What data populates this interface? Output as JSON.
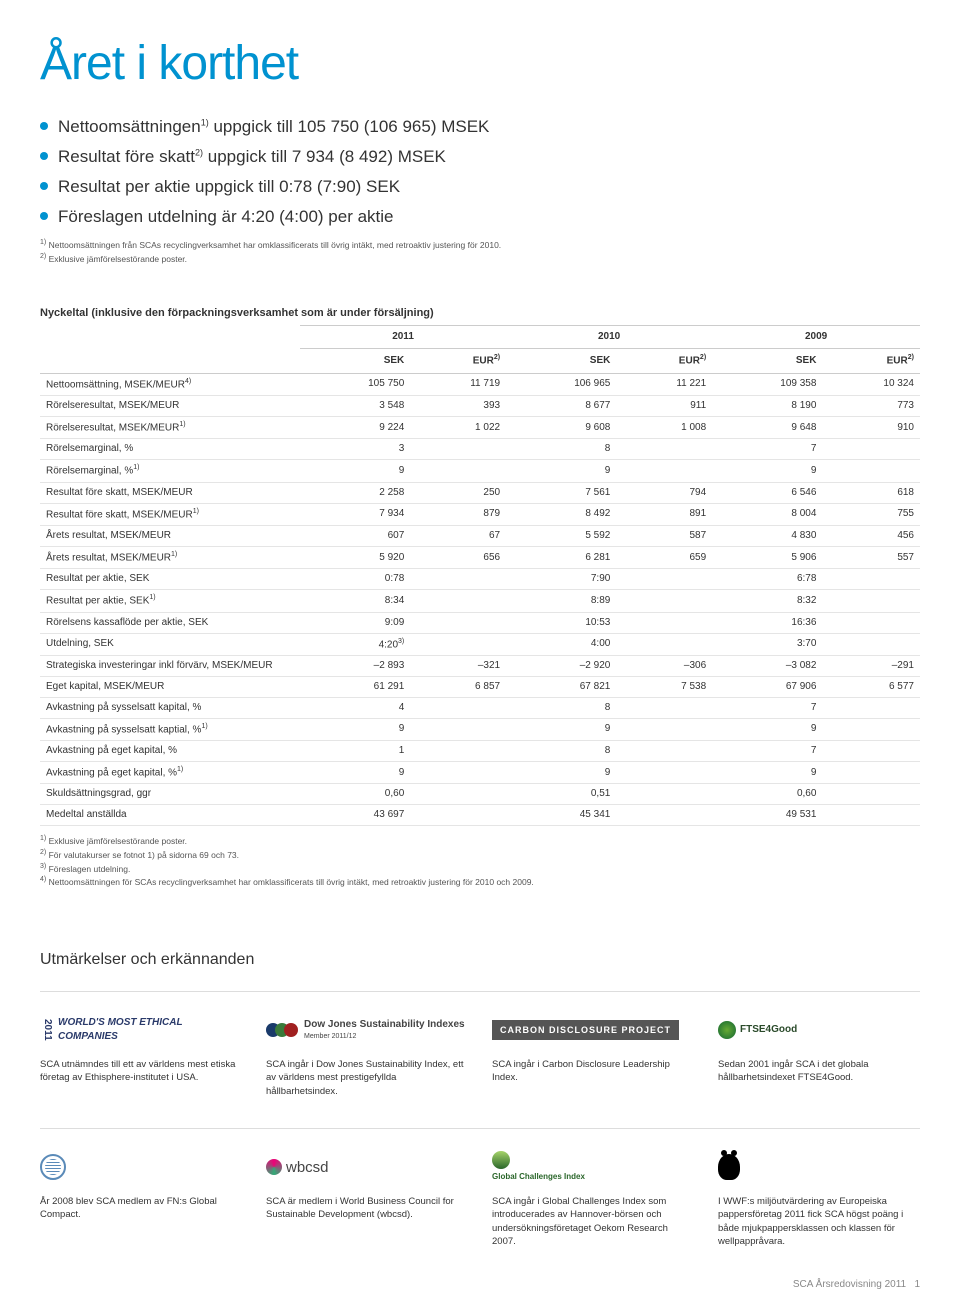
{
  "title": "Året i korthet",
  "bullets": [
    "Nettoomsättningen<sup>1)</sup> uppgick till 105 750 (106 965) MSEK",
    "Resultat före skatt<sup>2)</sup> uppgick till 7 934 (8 492) MSEK",
    "Resultat per aktie uppgick till 0:78 (7:90) SEK",
    "Föreslagen utdelning är 4:20 (4:00) per aktie"
  ],
  "intro_footnotes": [
    "<sup>1)</sup> Nettoomsättningen från SCAs recyclingverksamhet har omklassificerats till övrig intäkt, med retroaktiv justering för 2010.",
    "<sup>2)</sup> Exklusive jämförelsestörande poster."
  ],
  "table": {
    "title": "Nyckeltal (inklusive den förpackningsverksamhet som är under försäljning)",
    "years": [
      "2011",
      "2010",
      "2009"
    ],
    "sub_headers": [
      "SEK",
      "EUR<sup>2)</sup>",
      "SEK",
      "EUR<sup>2)</sup>",
      "SEK",
      "EUR<sup>2)</sup>"
    ],
    "rows": [
      {
        "label": "Nettoomsättning, MSEK/MEUR<sup>4)</sup>",
        "v": [
          "105 750",
          "11 719",
          "106 965",
          "11 221",
          "109 358",
          "10 324"
        ]
      },
      {
        "label": "Rörelseresultat, MSEK/MEUR",
        "v": [
          "3 548",
          "393",
          "8 677",
          "911",
          "8 190",
          "773"
        ]
      },
      {
        "label": "Rörelseresultat, MSEK/MEUR<sup>1)</sup>",
        "v": [
          "9 224",
          "1 022",
          "9 608",
          "1 008",
          "9 648",
          "910"
        ]
      },
      {
        "label": "Rörelsemarginal, %",
        "v": [
          "3",
          "",
          "8",
          "",
          "7",
          ""
        ]
      },
      {
        "label": "Rörelsemarginal, %<sup>1)</sup>",
        "v": [
          "9",
          "",
          "9",
          "",
          "9",
          ""
        ]
      },
      {
        "label": "Resultat före skatt, MSEK/MEUR",
        "v": [
          "2 258",
          "250",
          "7 561",
          "794",
          "6 546",
          "618"
        ]
      },
      {
        "label": "Resultat före skatt, MSEK/MEUR<sup>1)</sup>",
        "v": [
          "7 934",
          "879",
          "8 492",
          "891",
          "8 004",
          "755"
        ]
      },
      {
        "label": "Årets resultat, MSEK/MEUR",
        "v": [
          "607",
          "67",
          "5 592",
          "587",
          "4 830",
          "456"
        ]
      },
      {
        "label": "Årets resultat, MSEK/MEUR<sup>1)</sup>",
        "v": [
          "5 920",
          "656",
          "6 281",
          "659",
          "5 906",
          "557"
        ]
      },
      {
        "label": "Resultat per aktie, SEK",
        "v": [
          "0:78",
          "",
          "7:90",
          "",
          "6:78",
          ""
        ]
      },
      {
        "label": "Resultat per aktie, SEK<sup>1)</sup>",
        "v": [
          "8:34",
          "",
          "8:89",
          "",
          "8:32",
          ""
        ]
      },
      {
        "label": "Rörelsens kassaflöde per aktie, SEK",
        "v": [
          "9:09",
          "",
          "10:53",
          "",
          "16:36",
          ""
        ]
      },
      {
        "label": "Utdelning, SEK",
        "v": [
          "4:20<sup>3)</sup>",
          "",
          "4:00",
          "",
          "3:70",
          ""
        ]
      },
      {
        "label": "Strategiska investeringar inkl förvärv, MSEK/MEUR",
        "v": [
          "–2 893",
          "–321",
          "–2 920",
          "–306",
          "–3 082",
          "–291"
        ]
      },
      {
        "label": "Eget kapital, MSEK/MEUR",
        "v": [
          "61 291",
          "6 857",
          "67 821",
          "7 538",
          "67 906",
          "6 577"
        ]
      },
      {
        "label": "Avkastning på sysselsatt kapital, %",
        "v": [
          "4",
          "",
          "8",
          "",
          "7",
          ""
        ]
      },
      {
        "label": "Avkastning på sysselsatt kaptial, %<sup>1)</sup>",
        "v": [
          "9",
          "",
          "9",
          "",
          "9",
          ""
        ]
      },
      {
        "label": "Avkastning på eget kapital, %",
        "v": [
          "1",
          "",
          "8",
          "",
          "7",
          ""
        ]
      },
      {
        "label": "Avkastning på eget kapital, %<sup>1)</sup>",
        "v": [
          "9",
          "",
          "9",
          "",
          "9",
          ""
        ]
      },
      {
        "label": "Skuldsättningsgrad, ggr",
        "v": [
          "0,60",
          "",
          "0,51",
          "",
          "0,60",
          ""
        ]
      },
      {
        "label": "Medeltal anställda",
        "v": [
          "43 697",
          "",
          "45 341",
          "",
          "49 531",
          ""
        ]
      }
    ],
    "footnotes": [
      "<sup>1)</sup> Exklusive jämförelsestörande poster.",
      "<sup>2)</sup> För valutakurser se fotnot 1) på sidorna 69 och 73.",
      "<sup>3)</sup> Föreslagen utdelning.",
      "<sup>4)</sup> Nettoomsättningen för SCAs recyclingverksamhet har omklassificerats till övrig intäkt, med retroaktiv justering för 2010 och 2009."
    ]
  },
  "awards_title": "Utmärkelser och erkännanden",
  "awards_row1": [
    {
      "desc": "SCA utnämndes till ett av världens mest etiska företag av Ethisphere-institutet i USA."
    },
    {
      "desc": "SCA ingår i Dow Jones Sustainability Index, ett av världens mest prestigefyllda hållbarhetsindex."
    },
    {
      "desc": "SCA ingår i Carbon Disclosure Leadership Index."
    },
    {
      "desc": "Sedan 2001 ingår SCA i det globala hållbarhetsindexet FTSE4Good."
    }
  ],
  "awards_row2": [
    {
      "desc": "År 2008 blev SCA medlem av FN:s Global Compact."
    },
    {
      "desc": "SCA är medlem i World Business Council for Sustainable Development (wbcsd)."
    },
    {
      "desc": "SCA ingår i Global Challenges Index som introducerades av Hannover-börsen och undersökningsföretaget Oekom Research 2007."
    },
    {
      "desc": "I WWF:s miljöutvärdering av Europeiska pappersföretag 2011 fick SCA högst poäng i både mjukpappersklassen och klassen för wellpappråvara."
    }
  ],
  "logos": {
    "ethical": "WORLD'S MOST ETHICAL COMPANIES",
    "dowjones": "Dow Jones Sustainability Indexes",
    "dowjones_sub": "Member 2011/12",
    "cdp": "CARBON DISCLOSURE PROJECT",
    "ftse": "FTSE4Good",
    "wbcsd": "wbcsd",
    "gci": "Global Challenges Index"
  },
  "footer": "SCA Årsredovisning 2011",
  "page_num": "1",
  "colors": {
    "accent": "#0092d0",
    "text": "#333333",
    "border": "#cccccc",
    "row_border": "#e5e5e5"
  }
}
